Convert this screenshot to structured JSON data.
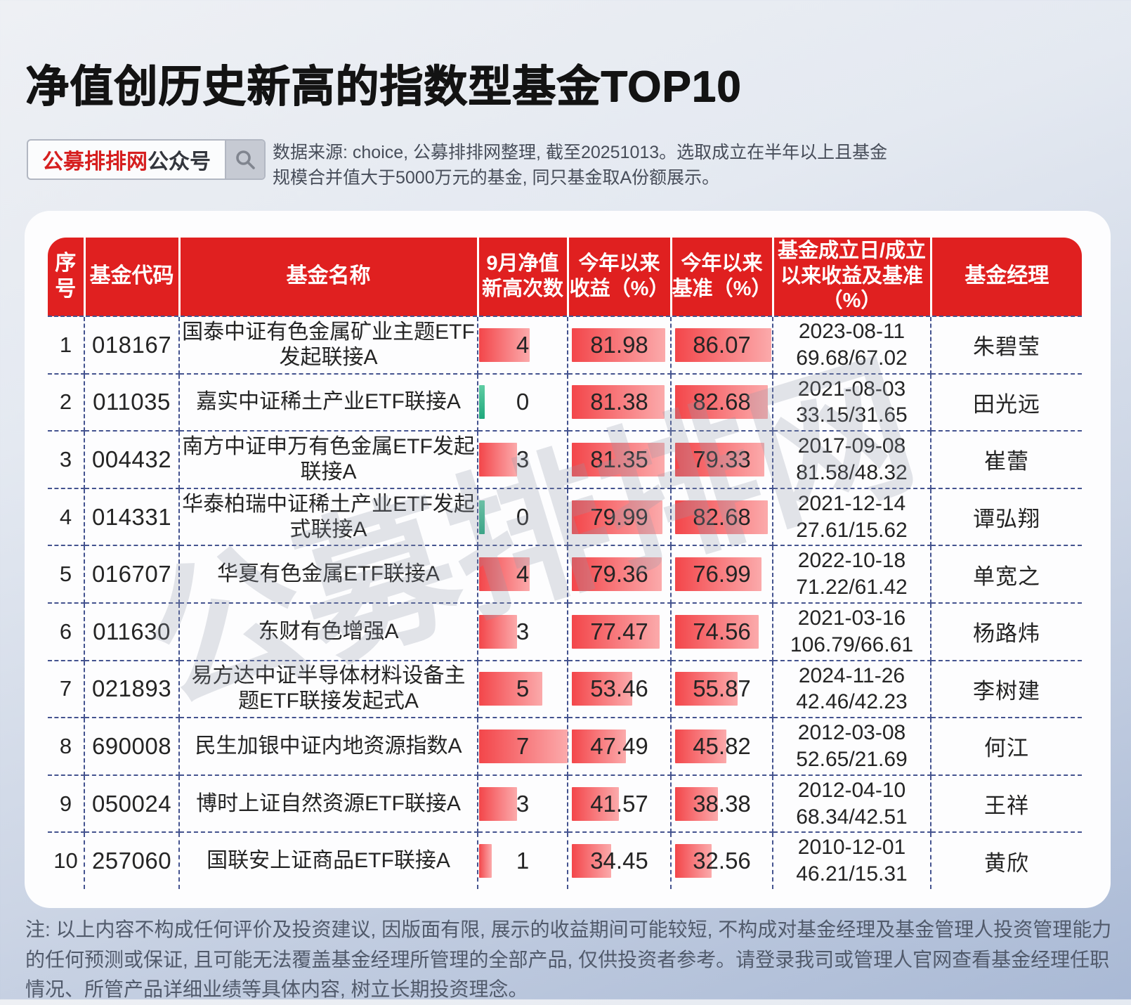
{
  "page": {
    "title": "净值创历史新高的指数型基金TOP10",
    "badge": {
      "brand": "公募排排网",
      "suffix": "公众号",
      "icon": "search-icon"
    },
    "source_note": "数据来源: choice, 公募排排网整理, 截至20251013。选取成立在半年以上且基金规模合并值大于5000万元的基金, 同只基金取A份额展示。",
    "watermark": "公募排排网",
    "footer_note": "注: 以上内容不构成任何评价及投资建议, 因版面有限, 展示的收益期间可能较短, 不构成对基金经理及基金管理人投资管理能力的任何预测或保证, 且可能无法覆盖基金经理所管理的全部产品, 仅供投资者参考。请登录我司或管理人官网查看基金经理任职情况、所管产品详细业绩等具体内容, 树立长期投资理念。"
  },
  "colors": {
    "header_red": "#e02020",
    "bar_red_start": "#f3464a",
    "bar_red_end": "#fbaaab",
    "zero_bar_green": "#1fa87c",
    "dashed_border": "#44538f",
    "brand_red": "#d61f1f"
  },
  "table": {
    "headers": [
      "序号",
      "基金代码",
      "基金名称",
      "9月净值新高次数",
      "今年以来收益（%）",
      "今年以来基准（%）",
      "基金成立日/成立以来收益及基准（%）",
      "基金经理"
    ],
    "rows": [
      {
        "no": "1",
        "code": "018167",
        "name": "国泰中证有色金属矿业主题ETF发起联接A",
        "new_highs": 4,
        "ytd_return": "81.98",
        "ytd_benchmark": "86.07",
        "inception_date": "2023-08-11",
        "since_return": "69.68/67.02",
        "manager": "朱碧莹"
      },
      {
        "no": "2",
        "code": "011035",
        "name": "嘉实中证稀土产业ETF联接A",
        "new_highs": 0,
        "ytd_return": "81.38",
        "ytd_benchmark": "82.68",
        "inception_date": "2021-08-03",
        "since_return": "33.15/31.65",
        "manager": "田光远"
      },
      {
        "no": "3",
        "code": "004432",
        "name": "南方中证申万有色金属ETF发起联接A",
        "new_highs": 3,
        "ytd_return": "81.35",
        "ytd_benchmark": "79.33",
        "inception_date": "2017-09-08",
        "since_return": "81.58/48.32",
        "manager": "崔蕾"
      },
      {
        "no": "4",
        "code": "014331",
        "name": "华泰柏瑞中证稀土产业ETF发起式联接A",
        "new_highs": 0,
        "ytd_return": "79.99",
        "ytd_benchmark": "82.68",
        "inception_date": "2021-12-14",
        "since_return": "27.61/15.62",
        "manager": "谭弘翔"
      },
      {
        "no": "5",
        "code": "016707",
        "name": "华夏有色金属ETF联接A",
        "new_highs": 4,
        "ytd_return": "79.36",
        "ytd_benchmark": "76.99",
        "inception_date": "2022-10-18",
        "since_return": "71.22/61.42",
        "manager": "单宽之"
      },
      {
        "no": "6",
        "code": "011630",
        "name": "东财有色增强A",
        "new_highs": 3,
        "ytd_return": "77.47",
        "ytd_benchmark": "74.56",
        "inception_date": "2021-03-16",
        "since_return": "106.79/66.61",
        "manager": "杨路炜"
      },
      {
        "no": "7",
        "code": "021893",
        "name": "易方达中证半导体材料设备主题ETF联接发起式A",
        "new_highs": 5,
        "ytd_return": "53.46",
        "ytd_benchmark": "55.87",
        "inception_date": "2024-11-26",
        "since_return": "42.46/42.23",
        "manager": "李树建"
      },
      {
        "no": "8",
        "code": "690008",
        "name": "民生加银中证内地资源指数A",
        "new_highs": 7,
        "ytd_return": "47.49",
        "ytd_benchmark": "45.82",
        "inception_date": "2012-03-08",
        "since_return": "52.65/21.69",
        "manager": "何江"
      },
      {
        "no": "9",
        "code": "050024",
        "name": "博时上证自然资源ETF联接A",
        "new_highs": 3,
        "ytd_return": "41.57",
        "ytd_benchmark": "38.38",
        "inception_date": "2012-04-10",
        "since_return": "68.34/42.51",
        "manager": "王祥"
      },
      {
        "no": "10",
        "code": "257060",
        "name": "国联安上证商品ETF联接A",
        "new_highs": 1,
        "ytd_return": "34.45",
        "ytd_benchmark": "32.56",
        "inception_date": "2010-12-01",
        "since_return": "46.21/15.31",
        "manager": "黄欣"
      }
    ]
  }
}
